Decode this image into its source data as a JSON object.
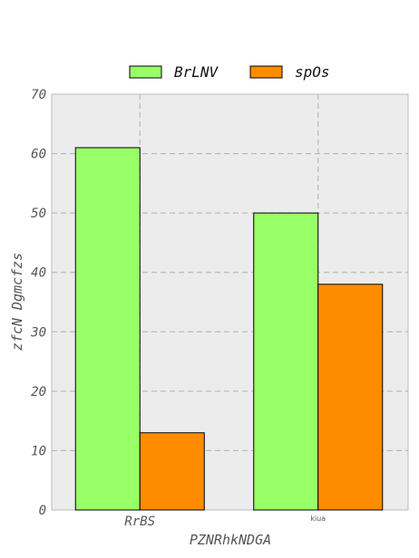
{
  "chart_data": {
    "type": "bar",
    "categories": [
      "RrBS",
      "kiua"
    ],
    "series": [
      {
        "name": "BrLNV",
        "values": [
          61,
          50
        ],
        "color": "#99ff66"
      },
      {
        "name": "spOs",
        "values": [
          13,
          38
        ],
        "color": "#ff8c00"
      }
    ],
    "title": "",
    "xlabel": "PZNRhkNDGA",
    "ylabel": "zfcN Dgmcfzs",
    "ylim": [
      0,
      70
    ],
    "yticks": [
      0,
      10,
      20,
      30,
      40,
      50,
      60,
      70
    ],
    "grid": true,
    "legend_position": "top-center",
    "background": "#ececec",
    "grid_color": "#b0b0b0"
  }
}
